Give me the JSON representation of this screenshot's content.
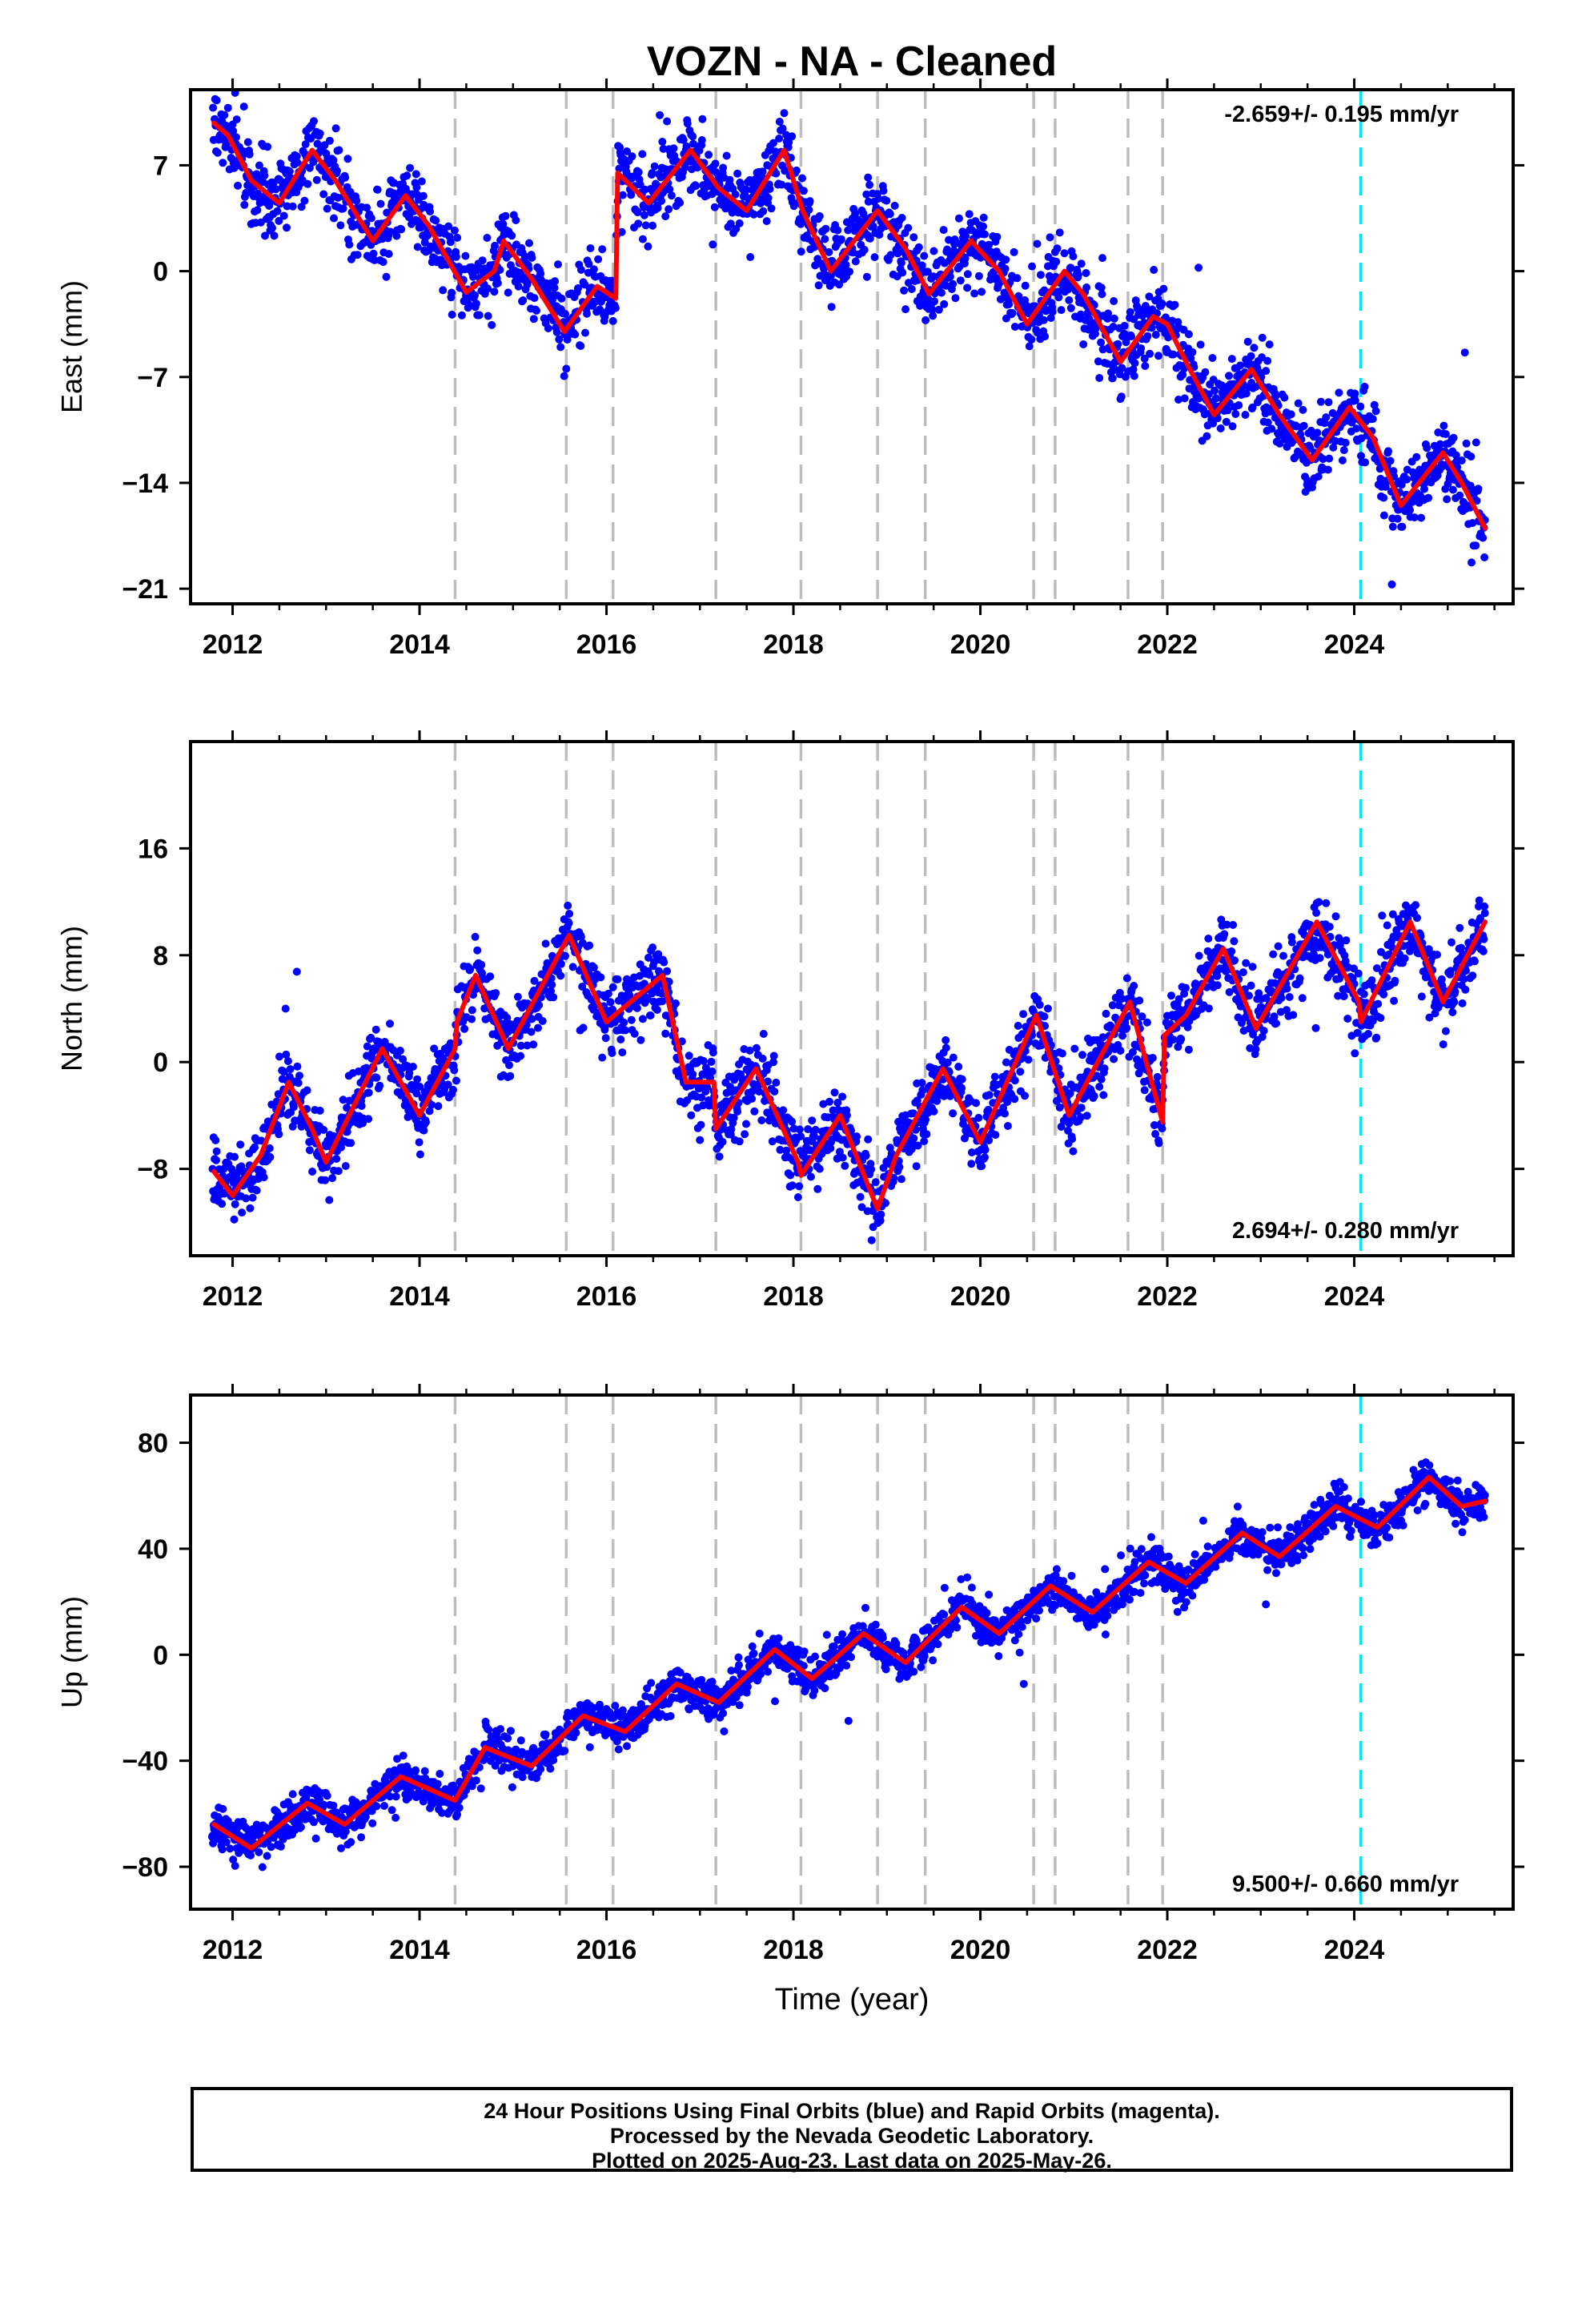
{
  "chart_data": [
    {
      "type": "scatter",
      "title": "VOZN  - NA - Cleaned",
      "ylabel": "East (mm)",
      "xlabel": "",
      "xlim": [
        2011.55,
        2025.7
      ],
      "ylim": [
        -22,
        12
      ],
      "xticks": [
        "2012",
        "2014",
        "2016",
        "2018",
        "2020",
        "2022",
        "2024"
      ],
      "yticks": [
        "7",
        "0",
        "−7",
        "−14",
        "−21"
      ],
      "ytick_values": [
        7,
        0,
        -7,
        -14,
        -21
      ],
      "rate_text": "-2.659+/- 0.195 mm/yr",
      "rate_position": "top-right",
      "data_range": [
        2011.78,
        2025.4
      ],
      "trend": {
        "points": [
          [
            2011.8,
            9.8
          ],
          [
            2011.95,
            9.0
          ],
          [
            2012.2,
            6.0
          ],
          [
            2012.5,
            4.5
          ],
          [
            2012.85,
            8.0
          ],
          [
            2013.1,
            6.0
          ],
          [
            2013.5,
            2.0
          ],
          [
            2013.85,
            5.0
          ],
          [
            2014.1,
            3.0
          ],
          [
            2014.5,
            -1.4
          ],
          [
            2014.8,
            0.0
          ],
          [
            2014.9,
            2.0
          ],
          [
            2015.2,
            -0.5
          ],
          [
            2015.55,
            -4.0
          ],
          [
            2015.9,
            -1.0
          ],
          [
            2016.1,
            -1.8
          ],
          [
            2016.12,
            6.5
          ],
          [
            2016.45,
            4.5
          ],
          [
            2016.9,
            8.0
          ],
          [
            2017.2,
            5.5
          ],
          [
            2017.5,
            4.0
          ],
          [
            2017.9,
            8.0
          ],
          [
            2018.1,
            4.0
          ],
          [
            2018.4,
            0.0
          ],
          [
            2018.9,
            4.0
          ],
          [
            2019.2,
            1.5
          ],
          [
            2019.45,
            -1.5
          ],
          [
            2019.9,
            2.0
          ],
          [
            2020.2,
            0.0
          ],
          [
            2020.5,
            -3.5
          ],
          [
            2020.9,
            0.0
          ],
          [
            2021.1,
            -1.5
          ],
          [
            2021.5,
            -6.0
          ],
          [
            2021.85,
            -3.0
          ],
          [
            2022.0,
            -3.5
          ],
          [
            2022.2,
            -6.0
          ],
          [
            2022.5,
            -9.5
          ],
          [
            2022.9,
            -6.5
          ],
          [
            2023.2,
            -9.5
          ],
          [
            2023.55,
            -12.5
          ],
          [
            2023.95,
            -9.0
          ],
          [
            2024.2,
            -11.0
          ],
          [
            2024.5,
            -15.5
          ],
          [
            2024.95,
            -12.0
          ],
          [
            2025.15,
            -14.0
          ],
          [
            2025.4,
            -17.0
          ]
        ]
      },
      "series": [
        {
          "name": "",
          "color": "#0000ff",
          "values": "daily positions (blue dots) scattered about the red trend, sigma about 1.3 mm"
        },
        {
          "name": "",
          "color": "#ff0000",
          "values": "trend model curve (red line)"
        }
      ],
      "offsets": [
        2014.38,
        2015.57,
        2016.07,
        2017.17,
        2018.08,
        2018.9,
        2019.41,
        2020.57,
        2020.8,
        2021.58,
        2021.95
      ],
      "events": [
        2024.07
      ]
    },
    {
      "type": "scatter",
      "title": "",
      "ylabel": "North (mm)",
      "xlabel": "",
      "xlim": [
        2011.55,
        2025.7
      ],
      "ylim": [
        -14.5,
        24
      ],
      "xticks": [
        "2012",
        "2014",
        "2016",
        "2018",
        "2020",
        "2022",
        "2024"
      ],
      "yticks": [
        "16",
        "8",
        "0",
        "−8"
      ],
      "ytick_values": [
        16,
        8,
        0,
        -8
      ],
      "rate_text": "2.694+/- 0.280 mm/yr",
      "rate_position": "bottom-right",
      "data_range": [
        2011.78,
        2025.4
      ],
      "trend": {
        "points": [
          [
            2011.8,
            -8.2
          ],
          [
            2012.0,
            -10.0
          ],
          [
            2012.3,
            -7.0
          ],
          [
            2012.6,
            -1.5
          ],
          [
            2012.85,
            -5.0
          ],
          [
            2013.0,
            -7.5
          ],
          [
            2013.6,
            1.0
          ],
          [
            2014.0,
            -4.0
          ],
          [
            2014.38,
            1.0
          ],
          [
            2014.4,
            3.0
          ],
          [
            2014.6,
            6.5
          ],
          [
            2014.95,
            1.0
          ],
          [
            2015.6,
            9.5
          ],
          [
            2016.0,
            3.0
          ],
          [
            2016.6,
            6.5
          ],
          [
            2016.85,
            -1.5
          ],
          [
            2017.15,
            -1.5
          ],
          [
            2017.17,
            -5.0
          ],
          [
            2017.6,
            -0.5
          ],
          [
            2018.05,
            -7.5
          ],
          [
            2018.08,
            -8.5
          ],
          [
            2018.5,
            -4.0
          ],
          [
            2018.9,
            -11.0
          ],
          [
            2019.1,
            -7.0
          ],
          [
            2019.6,
            -0.5
          ],
          [
            2020.0,
            -6.0
          ],
          [
            2020.6,
            3.5
          ],
          [
            2020.95,
            -4.0
          ],
          [
            2021.6,
            4.5
          ],
          [
            2021.95,
            -4.5
          ],
          [
            2021.97,
            2.0
          ],
          [
            2022.2,
            3.5
          ],
          [
            2022.6,
            8.5
          ],
          [
            2022.95,
            2.5
          ],
          [
            2023.6,
            10.5
          ],
          [
            2024.05,
            4.5
          ],
          [
            2024.07,
            3.0
          ],
          [
            2024.6,
            10.5
          ],
          [
            2024.95,
            4.5
          ],
          [
            2025.4,
            10.5
          ]
        ]
      },
      "series": [
        {
          "name": "",
          "color": "#0000ff",
          "values": "daily positions (blue dots) scattered about the red trend, sigma about 1.3 mm"
        },
        {
          "name": "",
          "color": "#ff0000",
          "values": "trend model curve (red line)"
        }
      ],
      "offsets": [
        2014.38,
        2015.57,
        2016.07,
        2017.17,
        2018.08,
        2018.9,
        2019.41,
        2020.57,
        2020.8,
        2021.58,
        2021.95
      ],
      "events": [
        2024.07
      ]
    },
    {
      "type": "scatter",
      "title": "",
      "ylabel": "Up (mm)",
      "xlabel": "Time (year)",
      "xlim": [
        2011.55,
        2025.7
      ],
      "ylim": [
        -96,
        98
      ],
      "xticks": [
        "2012",
        "2014",
        "2016",
        "2018",
        "2020",
        "2022",
        "2024"
      ],
      "yticks": [
        "80",
        "40",
        "0",
        "−40",
        "−80"
      ],
      "ytick_values": [
        80,
        40,
        0,
        -40,
        -80
      ],
      "rate_text": "9.500+/- 0.660 mm/yr",
      "rate_position": "bottom-right",
      "data_range": [
        2011.78,
        2025.4
      ],
      "trend": {
        "points": [
          [
            2011.8,
            -64.0
          ],
          [
            2012.2,
            -73.0
          ],
          [
            2012.8,
            -56.0
          ],
          [
            2013.2,
            -64.0
          ],
          [
            2013.8,
            -46.0
          ],
          [
            2014.38,
            -55.0
          ],
          [
            2014.7,
            -35.0
          ],
          [
            2015.2,
            -42.0
          ],
          [
            2015.75,
            -23.0
          ],
          [
            2016.2,
            -29.0
          ],
          [
            2016.75,
            -11.0
          ],
          [
            2017.2,
            -18.0
          ],
          [
            2017.8,
            2.0
          ],
          [
            2018.2,
            -9.0
          ],
          [
            2018.75,
            8.0
          ],
          [
            2019.2,
            -3.0
          ],
          [
            2019.8,
            18.0
          ],
          [
            2020.2,
            8.0
          ],
          [
            2020.75,
            26.0
          ],
          [
            2021.2,
            16.0
          ],
          [
            2021.8,
            35.0
          ],
          [
            2022.2,
            27.0
          ],
          [
            2022.8,
            46.0
          ],
          [
            2023.2,
            37.0
          ],
          [
            2023.8,
            56.0
          ],
          [
            2024.25,
            48.0
          ],
          [
            2024.8,
            67.0
          ],
          [
            2025.15,
            56.0
          ],
          [
            2025.4,
            58.0
          ]
        ]
      },
      "series": [
        {
          "name": "",
          "color": "#0000ff",
          "values": "daily positions (blue dots) scattered about the red trend, sigma about 3.5 mm"
        },
        {
          "name": "",
          "color": "#ff0000",
          "values": "trend model curve (red line)"
        }
      ],
      "offsets": [
        2014.38,
        2015.57,
        2016.07,
        2017.17,
        2018.08,
        2018.9,
        2019.41,
        2020.57,
        2020.8,
        2021.58,
        2021.95
      ],
      "events": [
        2024.07
      ]
    }
  ],
  "colors": {
    "data_points": "#0000ff",
    "model_line": "#ff0000",
    "offset_lines": "#bdbdbd",
    "event_line": "#00e5ee"
  },
  "footer": {
    "line1": "24 Hour Positions Using Final Orbits (blue) and Rapid Orbits (magenta).",
    "line2": "Processed by the Nevada Geodetic Laboratory.",
    "line3": "Plotted on 2025-Aug-23. Last data on 2025-May-26."
  }
}
